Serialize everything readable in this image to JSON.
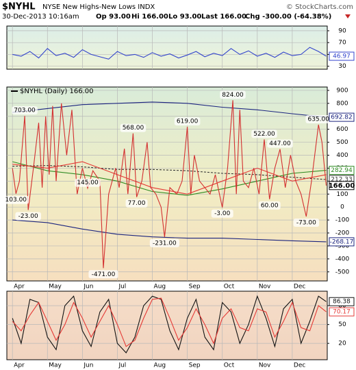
{
  "header": {
    "symbol": "$NYHL",
    "name": "NYSE New Highs-New Lows INDX",
    "copyright": "© StockCharts.com",
    "date": "30-Dec-2013 10:16am",
    "open": "Op 93.00",
    "high": "Hi 166.00",
    "low": "Lo 93.00",
    "last": "Last 166.00",
    "change": "Chg -300.00 (-64.38%)"
  },
  "chart_data": [
    {
      "type": "line",
      "ylim": [
        25,
        98
      ],
      "yticks": [
        90,
        70,
        50,
        30
      ],
      "xlim": [
        -0.16,
        9.0
      ],
      "xticks": [
        0,
        1,
        2,
        3,
        4,
        5,
        6,
        7,
        8
      ],
      "grid": true,
      "series": [
        {
          "color": "#3344cc",
          "end_label": "46.97",
          "x": [
            0,
            0.25,
            0.5,
            0.75,
            1,
            1.25,
            1.5,
            1.75,
            2,
            2.25,
            2.5,
            2.75,
            3,
            3.25,
            3.5,
            3.75,
            4,
            4.25,
            4.5,
            4.75,
            5,
            5.25,
            5.5,
            5.75,
            6,
            6.25,
            6.5,
            6.75,
            7,
            7.25,
            7.5,
            7.75,
            8,
            8.25,
            8.5,
            8.75,
            8.97
          ],
          "values": [
            50,
            47,
            55,
            44,
            60,
            48,
            52,
            45,
            58,
            50,
            46,
            42,
            55,
            48,
            50,
            45,
            53,
            47,
            51,
            44,
            49,
            55,
            46,
            52,
            48,
            60,
            50,
            56,
            47,
            52,
            45,
            54,
            48,
            50,
            62,
            55,
            46.97
          ]
        }
      ]
    },
    {
      "type": "line",
      "legend": "$NYHL (Daily) 166.00",
      "ylim": [
        -570,
        926
      ],
      "yticks": [
        900,
        800,
        700,
        600,
        500,
        400,
        300,
        200,
        100,
        0,
        -100,
        -200,
        -300,
        -400,
        -500
      ],
      "xlim": [
        -0.16,
        9.0
      ],
      "xticks": [
        {
          "value": 0,
          "label": "Apr"
        },
        {
          "value": 1,
          "label": "May"
        },
        {
          "value": 2,
          "label": "Jun"
        },
        {
          "value": 3,
          "label": "Jul"
        },
        {
          "value": 4,
          "label": "Aug"
        },
        {
          "value": 5,
          "label": "Sep"
        },
        {
          "value": 6,
          "label": "Oct"
        },
        {
          "value": 7,
          "label": "Nov"
        },
        {
          "value": 8,
          "label": "Dec"
        }
      ],
      "grid": true,
      "series": [
        {
          "color": "#1a237e",
          "end_label": "692.82",
          "x": [
            0,
            1,
            2,
            3,
            4,
            5,
            6,
            7,
            8,
            8.97
          ],
          "values": [
            730,
            760,
            790,
            800,
            810,
            800,
            770,
            750,
            720,
            692.82
          ]
        },
        {
          "color": "#1a237e",
          "end_label": "-268.17",
          "x": [
            0,
            1,
            2,
            3,
            4,
            5,
            6,
            7,
            8,
            8.97
          ],
          "values": [
            -100,
            -120,
            -170,
            -210,
            -230,
            -240,
            -240,
            -250,
            -260,
            -268.17
          ]
        },
        {
          "color": "#333333",
          "dash": true,
          "end_label": "212.33",
          "x": [
            0,
            1,
            2,
            3,
            4,
            5,
            6,
            7,
            8,
            8.97
          ],
          "values": [
            315,
            320,
            310,
            290,
            290,
            280,
            260,
            250,
            230,
            212.33
          ]
        },
        {
          "color": "#2e8b22",
          "end_label": "282.94",
          "x": [
            0,
            1,
            2,
            3,
            4,
            5,
            6,
            7,
            8,
            8.97
          ],
          "values": [
            350,
            280,
            250,
            200,
            120,
            90,
            140,
            200,
            260,
            282.94
          ]
        },
        {
          "color": "#e53935",
          "x": [
            0,
            1,
            2,
            3,
            4,
            5,
            6,
            7,
            8,
            8.97
          ],
          "values": [
            330,
            300,
            350,
            250,
            150,
            100,
            200,
            300,
            200,
            250
          ]
        },
        {
          "color": "#d32f2f",
          "end_label": "166.00",
          "x": [
            0,
            0.1,
            0.2,
            0.35,
            0.45,
            0.6,
            0.75,
            0.85,
            0.95,
            1.05,
            1.15,
            1.25,
            1.4,
            1.55,
            1.7,
            1.85,
            2,
            2.15,
            2.3,
            2.5,
            2.6,
            2.75,
            2.95,
            3.05,
            3.2,
            3.3,
            3.45,
            3.55,
            3.7,
            3.85,
            3.95,
            4.1,
            4.25,
            4.35,
            4.5,
            4.7,
            4.85,
            5,
            5.1,
            5.2,
            5.35,
            5.5,
            5.65,
            5.8,
            6,
            6.15,
            6.3,
            6.4,
            6.5,
            6.6,
            6.75,
            6.9,
            7.05,
            7.2,
            7.35,
            7.5,
            7.65,
            7.8,
            7.95,
            8.1,
            8.25,
            8.4,
            8.55,
            8.75,
            8.85,
            8.97
          ],
          "values": [
            300,
            103,
            200,
            703,
            -23,
            300,
            650,
            150,
            700,
            250,
            780,
            200,
            800,
            400,
            750,
            100,
            300,
            145,
            280,
            200,
            -471,
            100,
            300,
            150,
            450,
            100,
            568,
            77,
            200,
            500,
            150,
            100,
            0,
            -231,
            150,
            100,
            200,
            619,
            100,
            400,
            200,
            150,
            100,
            250,
            -3,
            300,
            824,
            100,
            750,
            200,
            150,
            300,
            100,
            522,
            60,
            300,
            447,
            150,
            400,
            200,
            100,
            -73,
            200,
            635,
            500,
            166
          ]
        }
      ],
      "annotations": [
        {
          "x": 0.35,
          "value": 703,
          "label": "703.00"
        },
        {
          "x": 0.1,
          "value": 103,
          "label": "103.00"
        },
        {
          "x": 0.45,
          "value": -23,
          "label": "-23.00"
        },
        {
          "x": 2.15,
          "value": 145,
          "label": "145.00"
        },
        {
          "x": 3.45,
          "value": 568,
          "label": "568.00"
        },
        {
          "x": 3.55,
          "value": 77,
          "label": "77.00"
        },
        {
          "x": 2.6,
          "value": -471,
          "label": "-471.00"
        },
        {
          "x": 4.35,
          "value": -231,
          "label": "-231.00"
        },
        {
          "x": 5,
          "value": 619,
          "label": "619.00"
        },
        {
          "x": 6,
          "value": -3,
          "label": "-3.00"
        },
        {
          "x": 6.3,
          "value": 824,
          "label": "824.00"
        },
        {
          "x": 7.2,
          "value": 522,
          "label": "522.00"
        },
        {
          "x": 7.35,
          "value": 60,
          "label": "60.00"
        },
        {
          "x": 7.65,
          "value": 447,
          "label": "447.00"
        },
        {
          "x": 8.4,
          "value": -73,
          "label": "-73.00"
        },
        {
          "x": 8.75,
          "value": 635,
          "label": "635.00"
        }
      ]
    },
    {
      "type": "line",
      "ylim": [
        -6,
        103
      ],
      "yticks": [
        80,
        50,
        20
      ],
      "xlim": [
        -0.16,
        9.0
      ],
      "xticks": [
        {
          "value": 0,
          "label": "Apr"
        },
        {
          "value": 1,
          "label": "May"
        },
        {
          "value": 2,
          "label": "Jun"
        },
        {
          "value": 3,
          "label": "Jul"
        },
        {
          "value": 4,
          "label": "Aug"
        },
        {
          "value": 5,
          "label": "Sep"
        },
        {
          "value": 6,
          "label": "Oct"
        },
        {
          "value": 7,
          "label": "Nov"
        },
        {
          "value": 8,
          "label": "Dec"
        }
      ],
      "grid": true,
      "series": [
        {
          "color": "#111111",
          "end_label": "86.38",
          "x": [
            0,
            0.25,
            0.5,
            0.75,
            1,
            1.25,
            1.5,
            1.75,
            2,
            2.25,
            2.5,
            2.75,
            3,
            3.25,
            3.5,
            3.75,
            4,
            4.25,
            4.5,
            4.75,
            5,
            5.25,
            5.5,
            5.75,
            6,
            6.25,
            6.5,
            6.75,
            7,
            7.25,
            7.5,
            7.75,
            8,
            8.25,
            8.5,
            8.75,
            8.97
          ],
          "values": [
            60,
            20,
            90,
            85,
            30,
            10,
            80,
            95,
            40,
            15,
            70,
            90,
            20,
            5,
            30,
            80,
            95,
            90,
            40,
            10,
            60,
            90,
            30,
            10,
            85,
            70,
            20,
            50,
            95,
            60,
            15,
            75,
            90,
            20,
            55,
            95,
            86.38
          ]
        },
        {
          "color": "#e53935",
          "end_label": "70.17",
          "x": [
            0,
            0.25,
            0.5,
            0.75,
            1,
            1.25,
            1.5,
            1.75,
            2,
            2.25,
            2.5,
            2.75,
            3,
            3.25,
            3.5,
            3.75,
            4,
            4.25,
            4.5,
            4.75,
            5,
            5.25,
            5.5,
            5.75,
            6,
            6.25,
            6.5,
            6.75,
            7,
            7.25,
            7.5,
            7.75,
            8,
            8.25,
            8.5,
            8.75,
            8.97
          ],
          "values": [
            55,
            40,
            65,
            85,
            55,
            25,
            50,
            85,
            60,
            30,
            55,
            80,
            50,
            15,
            25,
            60,
            90,
            92,
            60,
            25,
            45,
            75,
            50,
            20,
            60,
            75,
            45,
            40,
            75,
            70,
            30,
            55,
            85,
            45,
            40,
            80,
            70.17
          ]
        }
      ]
    }
  ]
}
